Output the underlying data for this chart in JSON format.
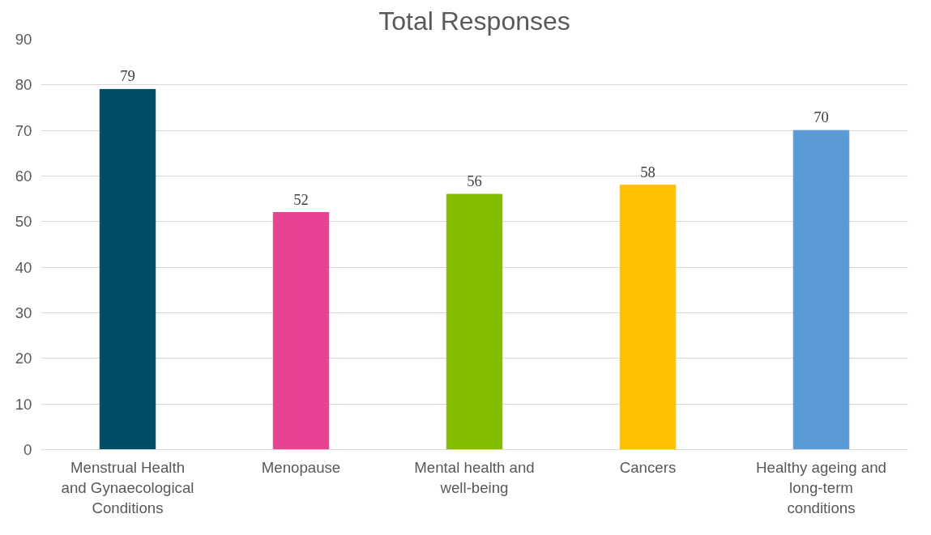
{
  "chart_data": {
    "type": "bar",
    "title": "Total Responses",
    "categories": [
      "Menstrual Health and Gynaecological Conditions",
      "Menopause",
      "Mental health and well-being",
      "Cancers",
      "Healthy ageing and long-term conditions"
    ],
    "values": [
      79,
      52,
      56,
      58,
      70
    ],
    "colors": [
      "#004d66",
      "#e84393",
      "#84bd00",
      "#ffc000",
      "#5b9bd5"
    ],
    "ylim": [
      0,
      90
    ],
    "yticks": [
      0,
      10,
      20,
      30,
      40,
      50,
      60,
      70,
      80,
      90
    ],
    "grid": "y",
    "data_labels": true
  }
}
